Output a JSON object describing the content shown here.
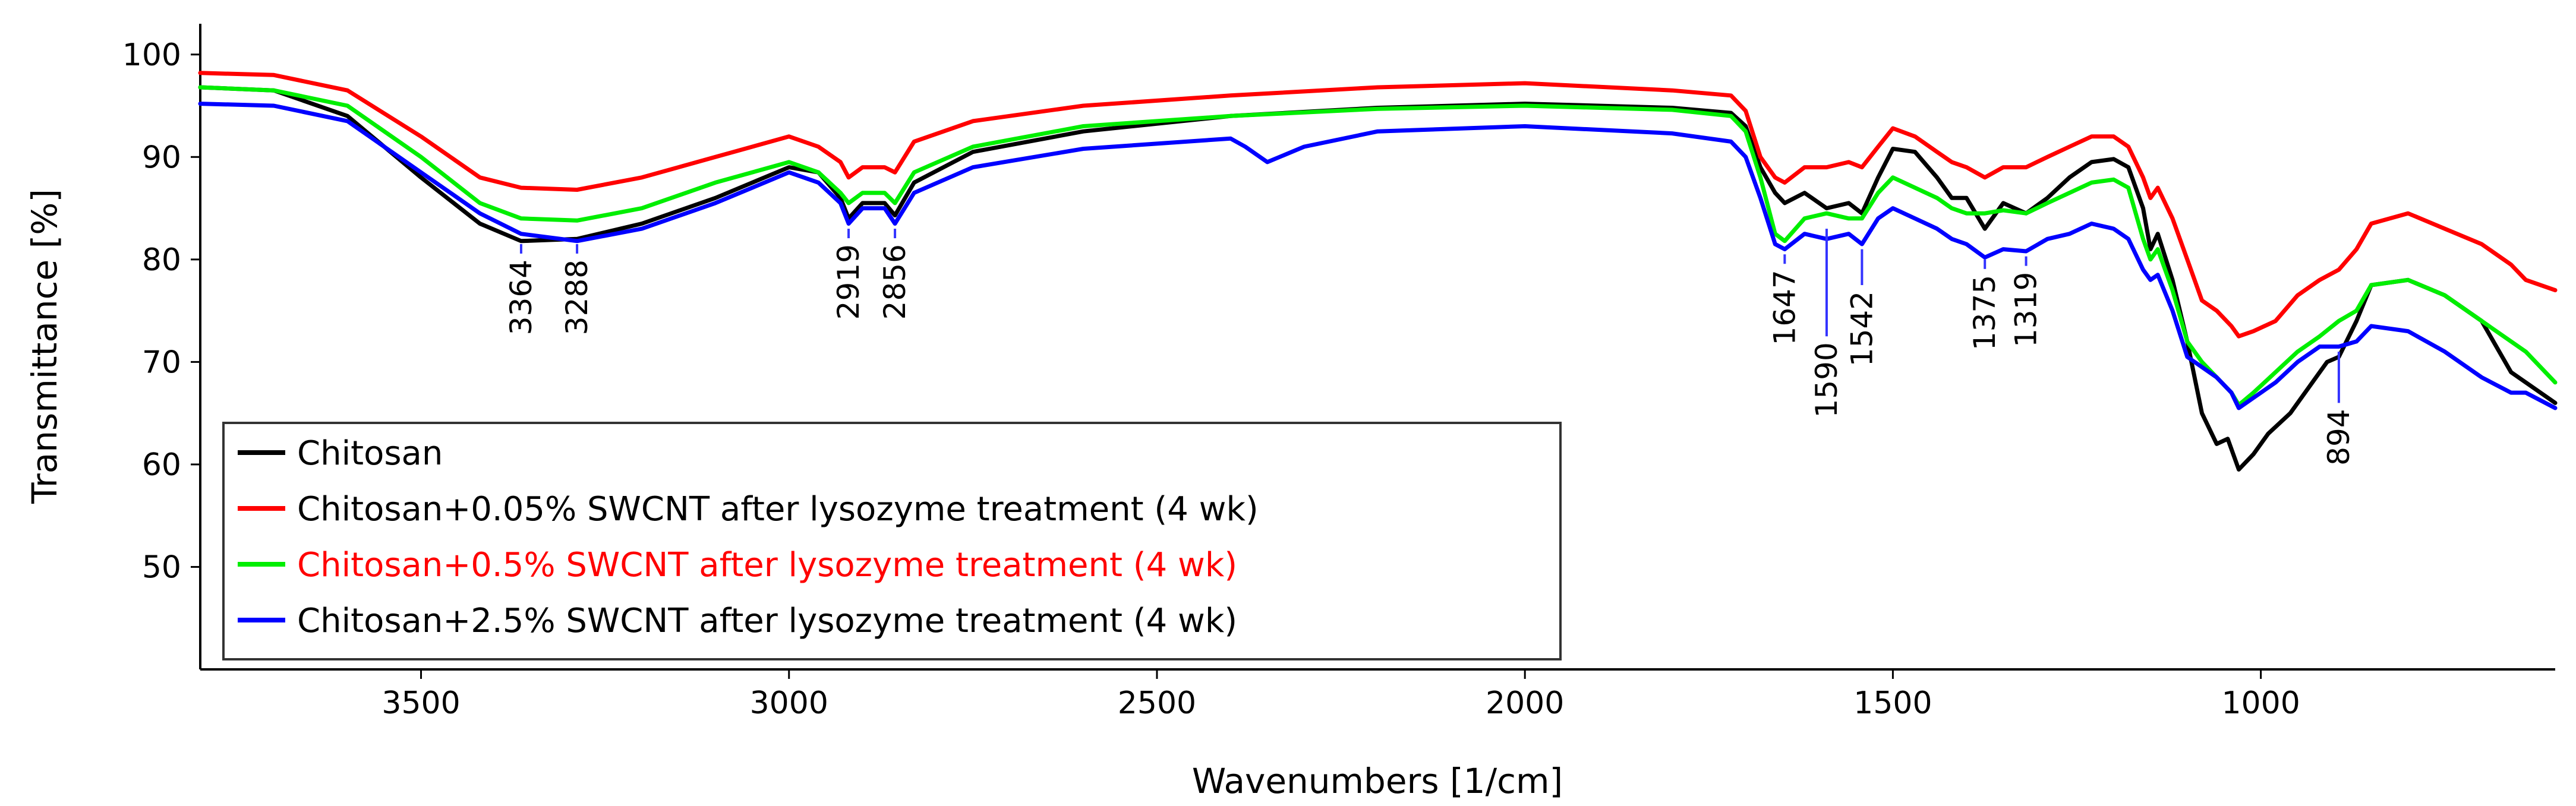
{
  "chart_data": {
    "type": "line",
    "title": "",
    "xlabel": "Wavenumbers [1/cm]",
    "ylabel": "Transmittance [%]",
    "xlim": [
      3800,
      600
    ],
    "ylim": [
      40,
      103
    ],
    "x_reversed": true,
    "xticks": [
      3500,
      3000,
      2500,
      2000,
      1500,
      1000
    ],
    "yticks": [
      50,
      60,
      70,
      80,
      90,
      100
    ],
    "grid": false,
    "legend_position": "bottom-left",
    "series": [
      {
        "name": "Chitosan",
        "color": "#000000",
        "legend_text_color": "#000000",
        "points": [
          [
            3800,
            96.8
          ],
          [
            3700,
            96.5
          ],
          [
            3600,
            94
          ],
          [
            3500,
            88
          ],
          [
            3420,
            83.5
          ],
          [
            3364,
            81.8
          ],
          [
            3288,
            82
          ],
          [
            3200,
            83.5
          ],
          [
            3100,
            86
          ],
          [
            3000,
            89
          ],
          [
            2960,
            88.5
          ],
          [
            2930,
            86
          ],
          [
            2919,
            84
          ],
          [
            2900,
            85.5
          ],
          [
            2870,
            85.5
          ],
          [
            2856,
            84.3
          ],
          [
            2830,
            87.5
          ],
          [
            2750,
            90.5
          ],
          [
            2600,
            92.5
          ],
          [
            2400,
            94
          ],
          [
            2200,
            94.8
          ],
          [
            2000,
            95.2
          ],
          [
            1800,
            94.8
          ],
          [
            1720,
            94.3
          ],
          [
            1700,
            93
          ],
          [
            1680,
            89
          ],
          [
            1660,
            86.5
          ],
          [
            1647,
            85.5
          ],
          [
            1620,
            86.5
          ],
          [
            1590,
            85
          ],
          [
            1560,
            85.5
          ],
          [
            1542,
            84.5
          ],
          [
            1520,
            88
          ],
          [
            1500,
            90.8
          ],
          [
            1470,
            90.5
          ],
          [
            1440,
            88
          ],
          [
            1420,
            86
          ],
          [
            1400,
            86
          ],
          [
            1375,
            83
          ],
          [
            1350,
            85.5
          ],
          [
            1319,
            84.5
          ],
          [
            1290,
            86
          ],
          [
            1260,
            88
          ],
          [
            1230,
            89.5
          ],
          [
            1200,
            89.8
          ],
          [
            1180,
            89
          ],
          [
            1160,
            85
          ],
          [
            1150,
            81
          ],
          [
            1140,
            82.5
          ],
          [
            1120,
            78
          ],
          [
            1100,
            72
          ],
          [
            1080,
            65
          ],
          [
            1060,
            62
          ],
          [
            1045,
            62.5
          ],
          [
            1030,
            59.5
          ],
          [
            1010,
            61
          ],
          [
            990,
            63
          ],
          [
            960,
            65
          ],
          [
            930,
            68
          ],
          [
            910,
            70
          ],
          [
            894,
            70.5
          ],
          [
            870,
            74
          ],
          [
            850,
            77.5
          ],
          [
            800,
            78
          ],
          [
            750,
            76.5
          ],
          [
            700,
            74
          ],
          [
            660,
            69
          ],
          [
            640,
            68
          ],
          [
            600,
            66
          ]
        ]
      },
      {
        "name": "Chitosan+0.05% SWCNT after lysozyme treatment (4 wk)",
        "color": "#ff0000",
        "legend_text_color": "#000000",
        "points": [
          [
            3800,
            98.2
          ],
          [
            3700,
            98
          ],
          [
            3600,
            96.5
          ],
          [
            3500,
            92
          ],
          [
            3420,
            88
          ],
          [
            3364,
            87
          ],
          [
            3288,
            86.8
          ],
          [
            3200,
            88
          ],
          [
            3100,
            90
          ],
          [
            3000,
            92
          ],
          [
            2960,
            91
          ],
          [
            2930,
            89.5
          ],
          [
            2919,
            88
          ],
          [
            2900,
            89
          ],
          [
            2870,
            89
          ],
          [
            2856,
            88.5
          ],
          [
            2830,
            91.5
          ],
          [
            2750,
            93.5
          ],
          [
            2600,
            95
          ],
          [
            2400,
            96
          ],
          [
            2200,
            96.8
          ],
          [
            2000,
            97.2
          ],
          [
            1800,
            96.5
          ],
          [
            1720,
            96
          ],
          [
            1700,
            94.5
          ],
          [
            1680,
            90
          ],
          [
            1660,
            88
          ],
          [
            1647,
            87.5
          ],
          [
            1620,
            89
          ],
          [
            1590,
            89
          ],
          [
            1560,
            89.5
          ],
          [
            1542,
            89
          ],
          [
            1520,
            91
          ],
          [
            1500,
            92.8
          ],
          [
            1470,
            92
          ],
          [
            1440,
            90.5
          ],
          [
            1420,
            89.5
          ],
          [
            1400,
            89
          ],
          [
            1375,
            88
          ],
          [
            1350,
            89
          ],
          [
            1319,
            89
          ],
          [
            1290,
            90
          ],
          [
            1260,
            91
          ],
          [
            1230,
            92
          ],
          [
            1200,
            92
          ],
          [
            1180,
            91
          ],
          [
            1160,
            88
          ],
          [
            1150,
            86
          ],
          [
            1140,
            87
          ],
          [
            1120,
            84
          ],
          [
            1100,
            80
          ],
          [
            1080,
            76
          ],
          [
            1060,
            75
          ],
          [
            1040,
            73.5
          ],
          [
            1030,
            72.5
          ],
          [
            1010,
            73
          ],
          [
            980,
            74
          ],
          [
            950,
            76.5
          ],
          [
            920,
            78
          ],
          [
            894,
            79
          ],
          [
            870,
            81
          ],
          [
            850,
            83.5
          ],
          [
            800,
            84.5
          ],
          [
            750,
            83
          ],
          [
            700,
            81.5
          ],
          [
            660,
            79.5
          ],
          [
            640,
            78
          ],
          [
            600,
            77
          ]
        ]
      },
      {
        "name": "Chitosan+0.5% SWCNT after lysozyme treatment (4 wk)",
        "color": "#00ee00",
        "legend_text_color": "#ff0000",
        "points": [
          [
            3800,
            96.8
          ],
          [
            3700,
            96.5
          ],
          [
            3600,
            95
          ],
          [
            3500,
            90
          ],
          [
            3420,
            85.5
          ],
          [
            3364,
            84
          ],
          [
            3288,
            83.8
          ],
          [
            3200,
            85
          ],
          [
            3100,
            87.5
          ],
          [
            3000,
            89.5
          ],
          [
            2960,
            88.5
          ],
          [
            2930,
            86.5
          ],
          [
            2919,
            85.5
          ],
          [
            2900,
            86.5
          ],
          [
            2870,
            86.5
          ],
          [
            2856,
            85.5
          ],
          [
            2830,
            88.5
          ],
          [
            2750,
            91
          ],
          [
            2600,
            93
          ],
          [
            2400,
            94
          ],
          [
            2200,
            94.7
          ],
          [
            2000,
            95
          ],
          [
            1800,
            94.6
          ],
          [
            1720,
            94
          ],
          [
            1700,
            92.5
          ],
          [
            1680,
            88
          ],
          [
            1660,
            82.5
          ],
          [
            1647,
            81.8
          ],
          [
            1620,
            84
          ],
          [
            1590,
            84.5
          ],
          [
            1560,
            84
          ],
          [
            1542,
            84
          ],
          [
            1520,
            86.5
          ],
          [
            1500,
            88
          ],
          [
            1470,
            87
          ],
          [
            1440,
            86
          ],
          [
            1420,
            85
          ],
          [
            1400,
            84.5
          ],
          [
            1375,
            84.5
          ],
          [
            1350,
            84.8
          ],
          [
            1319,
            84.5
          ],
          [
            1290,
            85.5
          ],
          [
            1260,
            86.5
          ],
          [
            1230,
            87.5
          ],
          [
            1200,
            87.8
          ],
          [
            1180,
            87
          ],
          [
            1160,
            82
          ],
          [
            1150,
            80
          ],
          [
            1140,
            81
          ],
          [
            1120,
            77
          ],
          [
            1100,
            72
          ],
          [
            1080,
            70
          ],
          [
            1060,
            68.5
          ],
          [
            1040,
            67
          ],
          [
            1030,
            65.8
          ],
          [
            1010,
            67
          ],
          [
            980,
            69
          ],
          [
            950,
            71
          ],
          [
            920,
            72.5
          ],
          [
            894,
            74
          ],
          [
            870,
            75
          ],
          [
            850,
            77.5
          ],
          [
            800,
            78
          ],
          [
            750,
            76.5
          ],
          [
            700,
            74
          ],
          [
            660,
            72
          ],
          [
            640,
            71
          ],
          [
            600,
            68
          ]
        ]
      },
      {
        "name": "Chitosan+2.5% SWCNT after lysozyme treatment (4 wk)",
        "color": "#0000ff",
        "legend_text_color": "#000000",
        "points": [
          [
            3800,
            95.2
          ],
          [
            3700,
            95
          ],
          [
            3600,
            93.5
          ],
          [
            3500,
            88.5
          ],
          [
            3420,
            84.5
          ],
          [
            3364,
            82.5
          ],
          [
            3288,
            81.8
          ],
          [
            3200,
            83
          ],
          [
            3100,
            85.5
          ],
          [
            3000,
            88.5
          ],
          [
            2960,
            87.5
          ],
          [
            2930,
            85.5
          ],
          [
            2919,
            83.5
          ],
          [
            2900,
            85
          ],
          [
            2870,
            85
          ],
          [
            2856,
            83.5
          ],
          [
            2830,
            86.5
          ],
          [
            2750,
            89
          ],
          [
            2600,
            90.8
          ],
          [
            2400,
            91.8
          ],
          [
            2380,
            91
          ],
          [
            2350,
            89.5
          ],
          [
            2300,
            91
          ],
          [
            2200,
            92.5
          ],
          [
            2000,
            93
          ],
          [
            1800,
            92.3
          ],
          [
            1720,
            91.5
          ],
          [
            1700,
            90
          ],
          [
            1680,
            86
          ],
          [
            1660,
            81.5
          ],
          [
            1647,
            81
          ],
          [
            1620,
            82.5
          ],
          [
            1590,
            82
          ],
          [
            1560,
            82.5
          ],
          [
            1542,
            81.5
          ],
          [
            1520,
            84
          ],
          [
            1500,
            85
          ],
          [
            1470,
            84
          ],
          [
            1440,
            83
          ],
          [
            1420,
            82
          ],
          [
            1400,
            81.5
          ],
          [
            1375,
            80.2
          ],
          [
            1350,
            81
          ],
          [
            1319,
            80.8
          ],
          [
            1290,
            82
          ],
          [
            1260,
            82.5
          ],
          [
            1230,
            83.5
          ],
          [
            1200,
            83
          ],
          [
            1180,
            82
          ],
          [
            1160,
            79
          ],
          [
            1150,
            78
          ],
          [
            1140,
            78.5
          ],
          [
            1120,
            75
          ],
          [
            1100,
            70.5
          ],
          [
            1080,
            69.5
          ],
          [
            1060,
            68.5
          ],
          [
            1040,
            67
          ],
          [
            1030,
            65.5
          ],
          [
            1010,
            66.5
          ],
          [
            980,
            68
          ],
          [
            950,
            70
          ],
          [
            920,
            71.5
          ],
          [
            894,
            71.5
          ],
          [
            870,
            72
          ],
          [
            850,
            73.5
          ],
          [
            800,
            73
          ],
          [
            750,
            71
          ],
          [
            700,
            68.5
          ],
          [
            660,
            67
          ],
          [
            640,
            67
          ],
          [
            600,
            65.5
          ]
        ]
      }
    ],
    "annotations": [
      {
        "label": "3364",
        "x": 3364,
        "y": 81.5,
        "marker": "tick",
        "text_below": true
      },
      {
        "label": "3288",
        "x": 3288,
        "y": 81.5,
        "marker": "tick",
        "text_below": true
      },
      {
        "label": "2919",
        "x": 2919,
        "y": 83,
        "marker": "dash",
        "text_below": true
      },
      {
        "label": "2856",
        "x": 2856,
        "y": 83,
        "marker": "dash",
        "text_below": true
      },
      {
        "label": "1647",
        "x": 1647,
        "y": 80.5,
        "marker": "dash",
        "text_below": true
      },
      {
        "label": "1590",
        "x": 1590,
        "y": 83,
        "marker": "line",
        "y_end": 72.5,
        "text_below": true
      },
      {
        "label": "1542",
        "x": 1542,
        "y": 81,
        "marker": "line",
        "y_end": 77.5,
        "text_below": true
      },
      {
        "label": "1375",
        "x": 1375,
        "y": 80,
        "marker": "dash",
        "text_below": true
      },
      {
        "label": "1319",
        "x": 1319,
        "y": 80.3,
        "marker": "dash",
        "text_below": true
      },
      {
        "label": "894",
        "x": 894,
        "y": 71,
        "marker": "line",
        "y_end": 66,
        "text_below": true
      }
    ]
  }
}
